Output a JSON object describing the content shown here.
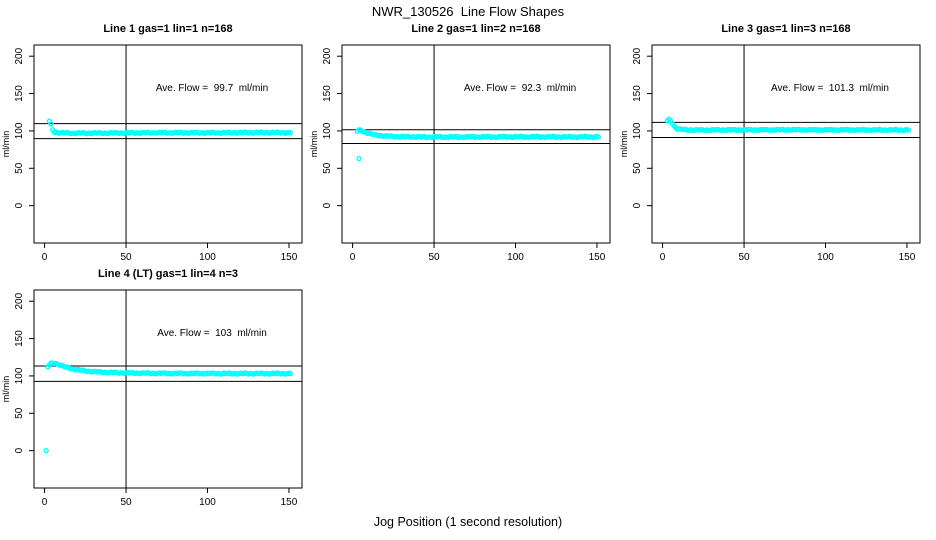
{
  "page": {
    "title": "NWR_130526  Line Flow Shapes",
    "xlabel": "Jog Position (1 second resolution)"
  },
  "colors": {
    "points": "#00FFFF",
    "axis": "#000000",
    "background": "#FFFFFF",
    "text": "#000000"
  },
  "axes": {
    "xticks": [
      0,
      50,
      100,
      150
    ],
    "yticks": [
      0,
      50,
      100,
      150,
      200
    ],
    "xlim": [
      -6.5,
      158
    ],
    "ylim": [
      -50,
      215
    ],
    "ylabel": "ml/min",
    "vertical_ref_line_x": 50,
    "grid": false
  },
  "chart_data": [
    {
      "type": "scatter",
      "title": "Line 1 gas=1 lin=1 n=168",
      "annotation": "Ave. Flow =  99.7  ml/min",
      "ave_flow_ml_min": 99.7,
      "n": 168,
      "ref_lines_y": [
        109.7,
        89.7
      ],
      "outliers": [
        [
          3,
          113
        ]
      ],
      "band_profile": [
        [
          4,
          108.5
        ],
        [
          5,
          101.5
        ],
        [
          6,
          99
        ],
        [
          8,
          97.8
        ],
        [
          12,
          97.2
        ],
        [
          20,
          97
        ],
        [
          40,
          97.2
        ],
        [
          70,
          97.6
        ],
        [
          100,
          97.5
        ],
        [
          130,
          97.8
        ],
        [
          151,
          97.6
        ]
      ]
    },
    {
      "type": "scatter",
      "title": "Line 2 gas=1 lin=2 n=168",
      "annotation": "Ave. Flow =  92.3  ml/min",
      "ave_flow_ml_min": 92.3,
      "n": 168,
      "ref_lines_y": [
        101.5,
        83.1
      ],
      "outliers": [
        [
          4,
          63
        ]
      ],
      "band_profile": [
        [
          3,
          99.5
        ],
        [
          4,
          100.8
        ],
        [
          5,
          101.2
        ],
        [
          6,
          100.3
        ],
        [
          8,
          98.2
        ],
        [
          10,
          96.6
        ],
        [
          13,
          95
        ],
        [
          17,
          93.8
        ],
        [
          22,
          92.8
        ],
        [
          30,
          92.2
        ],
        [
          45,
          91.9
        ],
        [
          70,
          91.9
        ],
        [
          100,
          92.1
        ],
        [
          130,
          91.9
        ],
        [
          151,
          92
        ]
      ]
    },
    {
      "type": "scatter",
      "title": "Line 3 gas=1 lin=3 n=168",
      "annotation": "Ave. Flow =  101.3  ml/min",
      "ave_flow_ml_min": 101.3,
      "n": 168,
      "ref_lines_y": [
        111.4,
        91.2
      ],
      "outliers": [],
      "band_profile": [
        [
          3,
          113.5
        ],
        [
          4,
          115
        ],
        [
          5,
          113.5
        ],
        [
          6,
          110.5
        ],
        [
          7,
          107
        ],
        [
          8,
          104.5
        ],
        [
          9,
          103
        ],
        [
          11,
          102
        ],
        [
          15,
          101.4
        ],
        [
          25,
          101.2
        ],
        [
          50,
          101.4
        ],
        [
          80,
          101.6
        ],
        [
          110,
          101.4
        ],
        [
          151,
          101.3
        ]
      ]
    },
    {
      "type": "scatter",
      "title": "Line 4 (LT) gas=1 lin=4 n=3",
      "annotation": "Ave. Flow =  103  ml/min",
      "ave_flow_ml_min": 103,
      "n": 3,
      "ref_lines_y": [
        113.3,
        92.7
      ],
      "outliers": [
        [
          1,
          0
        ]
      ],
      "band_profile": [
        [
          2,
          112
        ],
        [
          3,
          114.5
        ],
        [
          4,
          116.5
        ],
        [
          6,
          117.5
        ],
        [
          8,
          116
        ],
        [
          10,
          114.2
        ],
        [
          13,
          111.8
        ],
        [
          16,
          110
        ],
        [
          20,
          108.3
        ],
        [
          25,
          106.8
        ],
        [
          31,
          105.6
        ],
        [
          38,
          104.8
        ],
        [
          46,
          104.2
        ],
        [
          56,
          103.8
        ],
        [
          70,
          103.5
        ],
        [
          90,
          103.3
        ],
        [
          120,
          103.2
        ],
        [
          151,
          103.2
        ]
      ]
    }
  ]
}
